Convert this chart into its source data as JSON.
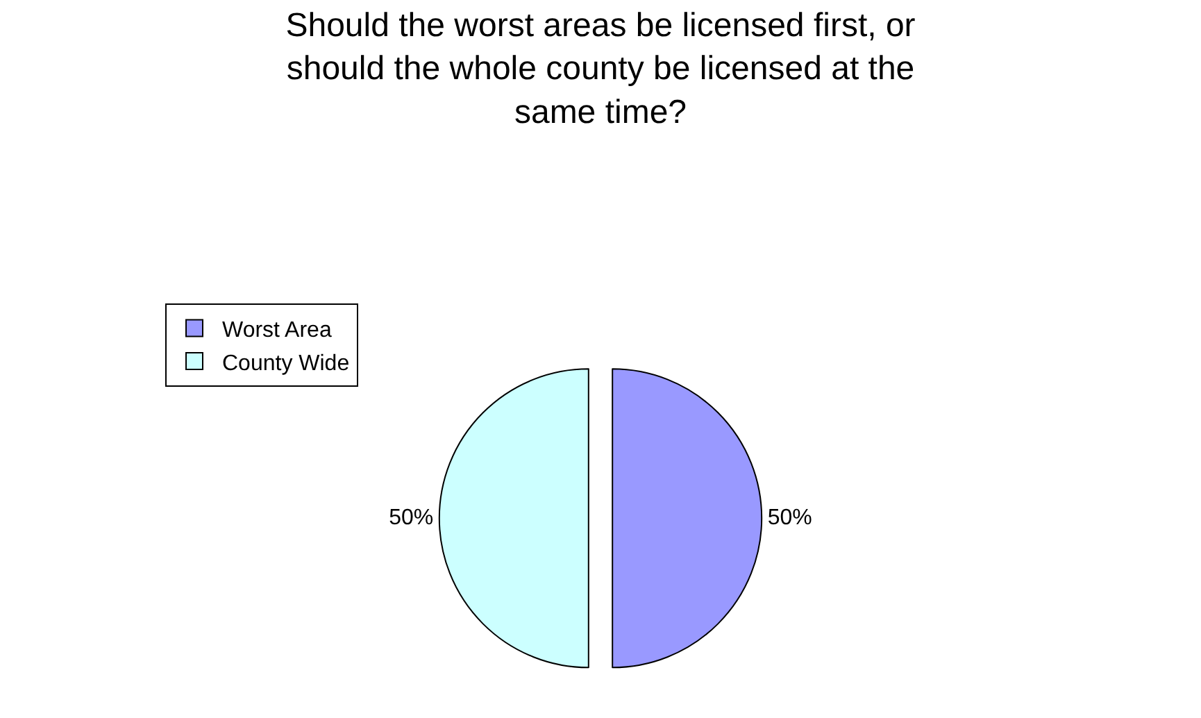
{
  "chart_data": {
    "type": "pie",
    "title": "Should the worst areas be licensed first, or\nshould the whole county be licensed at the\nsame time?",
    "categories": [
      "Worst Area",
      "County Wide"
    ],
    "values": [
      50,
      50
    ],
    "value_labels": [
      "50%",
      "50%"
    ],
    "colors": [
      "#9999ff",
      "#ccffff"
    ],
    "legend": "top left"
  }
}
